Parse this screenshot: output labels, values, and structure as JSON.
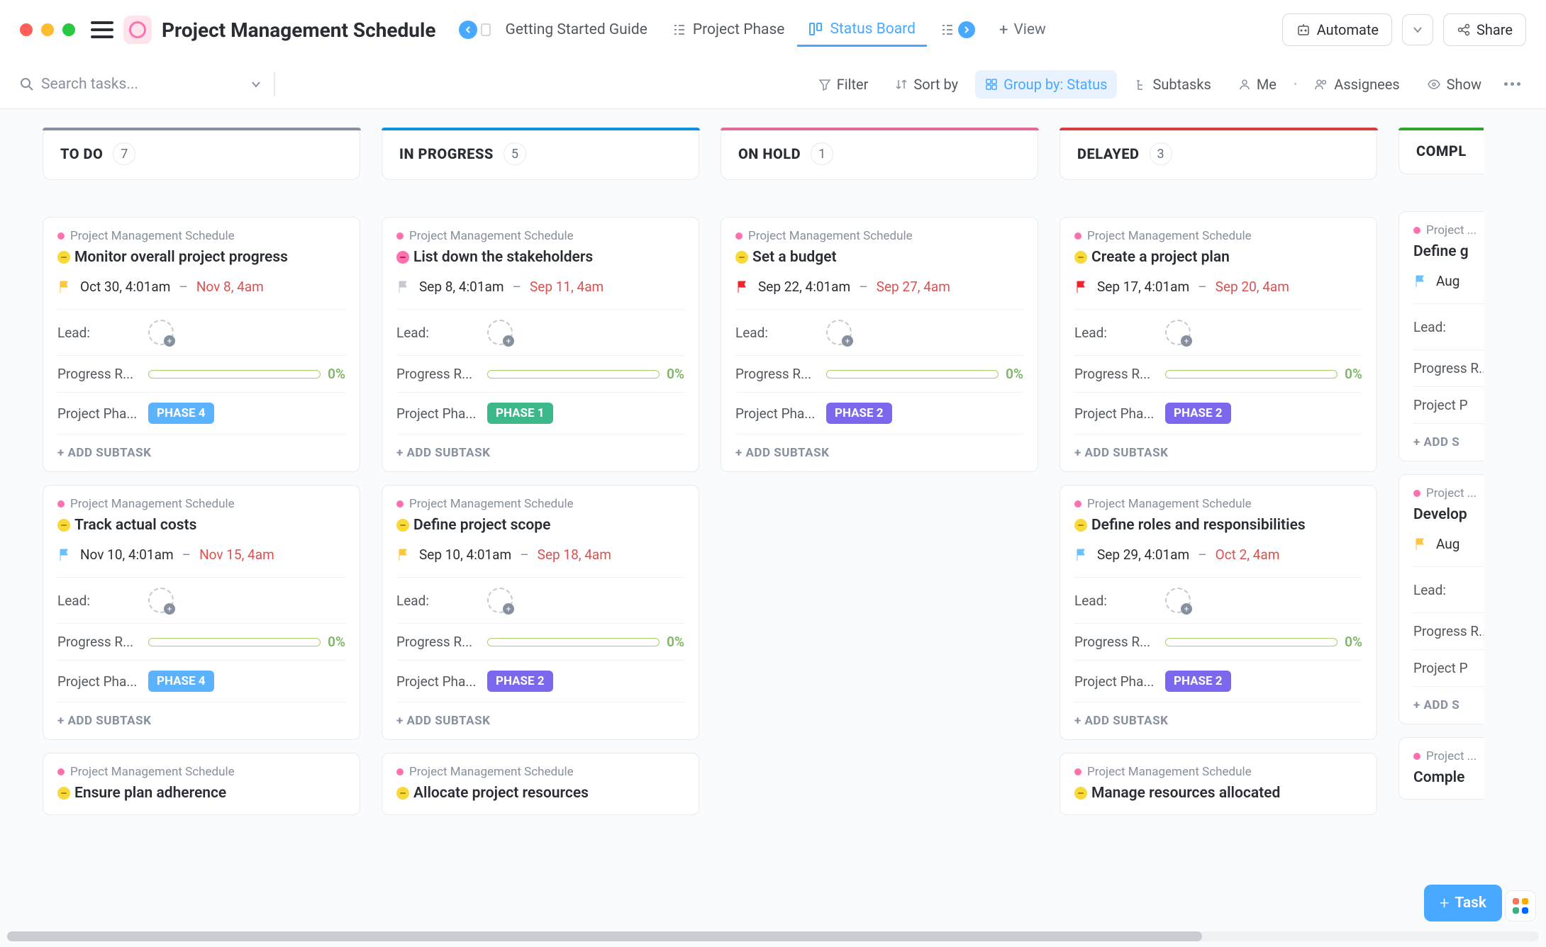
{
  "project": {
    "title": "Project Management Schedule"
  },
  "tabs": {
    "guide": "Getting Started Guide",
    "phase": "Project Phase",
    "status": "Status Board",
    "view": "View"
  },
  "topButtons": {
    "automate": "Automate",
    "share": "Share"
  },
  "search": {
    "placeholder": "Search tasks..."
  },
  "toolbar": {
    "filter": "Filter",
    "sort": "Sort by",
    "group": "Group by: Status",
    "subtasks": "Subtasks",
    "me": "Me",
    "assignees": "Assignees",
    "show": "Show"
  },
  "colors": {
    "accent_blue": "#49a8ff",
    "pink": "#fd71af",
    "flag_yellow": "#ffc53d",
    "flag_grey": "#c4c9d1",
    "flag_red": "#f5222d",
    "flag_cyan": "#69c0ff",
    "phase1": "#3db88b",
    "phase2": "#7b68ee",
    "phase4": "#5bb3ff",
    "col_todo": "#87909e",
    "col_inprogress": "#1090e0",
    "col_onhold": "#e16b9d",
    "col_delayed": "#d33d44",
    "col_completed": "#2ea52c"
  },
  "labels": {
    "lead": "Lead:",
    "progress": "Progress R...",
    "phase": "Project Pha...",
    "addSub": "+ ADD SUBTASK",
    "projName": "Project Management Schedule",
    "projNameTrunc": "Project ...",
    "progressVal": "0%",
    "taskBtn": "Task",
    "addSubTrunc": "+ ADD S"
  },
  "phases": {
    "p1": "PHASE 1",
    "p2": "PHASE 2",
    "p4": "PHASE 4"
  },
  "columns": [
    {
      "id": "todo",
      "name": "TO DO",
      "count": "7"
    },
    {
      "id": "inprogress",
      "name": "IN PROGRESS",
      "count": "5"
    },
    {
      "id": "onhold",
      "name": "ON HOLD",
      "count": "1"
    },
    {
      "id": "delayed",
      "name": "DELAYED",
      "count": "3"
    },
    {
      "id": "completed",
      "name": "COMPL"
    }
  ],
  "cards": {
    "todo": [
      {
        "title": "Monitor overall project progress",
        "status": "yellow",
        "flag": "yellow",
        "start": "Oct 30, 4:01am",
        "end": "Nov 8, 4am",
        "phase": "p4"
      },
      {
        "title": "Track actual costs",
        "status": "yellow",
        "flag": "cyan",
        "start": "Nov 10, 4:01am",
        "end": "Nov 15, 4am",
        "phase": "p4"
      },
      {
        "title": "Ensure plan adherence",
        "status": "yellow",
        "partial": true
      }
    ],
    "inprogress": [
      {
        "title": "List down the stakeholders",
        "status": "pink",
        "flag": "grey",
        "start": "Sep 8, 4:01am",
        "end": "Sep 11, 4am",
        "phase": "p1"
      },
      {
        "title": "Define project scope",
        "status": "yellow",
        "flag": "yellow",
        "start": "Sep 10, 4:01am",
        "end": "Sep 18, 4am",
        "phase": "p2"
      },
      {
        "title": "Allocate project resources",
        "status": "yellow",
        "partial": true
      }
    ],
    "onhold": [
      {
        "title": "Set a budget",
        "status": "yellow",
        "flag": "red",
        "start": "Sep 22, 4:01am",
        "end": "Sep 27, 4am",
        "phase": "p2"
      }
    ],
    "delayed": [
      {
        "title": "Create a project plan",
        "status": "yellow",
        "flag": "red",
        "start": "Sep 17, 4:01am",
        "end": "Sep 20, 4am",
        "phase": "p2"
      },
      {
        "title": "Define roles and responsibilities",
        "status": "yellow",
        "flag": "cyan",
        "start": "Sep 29, 4:01am",
        "end": "Oct 2, 4am",
        "phase": "p2"
      },
      {
        "title": "Manage resources allocated",
        "status": "yellow",
        "partial": true
      }
    ],
    "completed": [
      {
        "title": "Define g",
        "flag": "cyan",
        "start": "Aug",
        "phase_label": "Project P",
        "trunc": true
      },
      {
        "title": "Develop",
        "flag": "yellow",
        "start": "Aug",
        "phase_label": "Project P",
        "trunc": true
      },
      {
        "title": "Comple",
        "partial": true,
        "trunc": true
      }
    ]
  }
}
